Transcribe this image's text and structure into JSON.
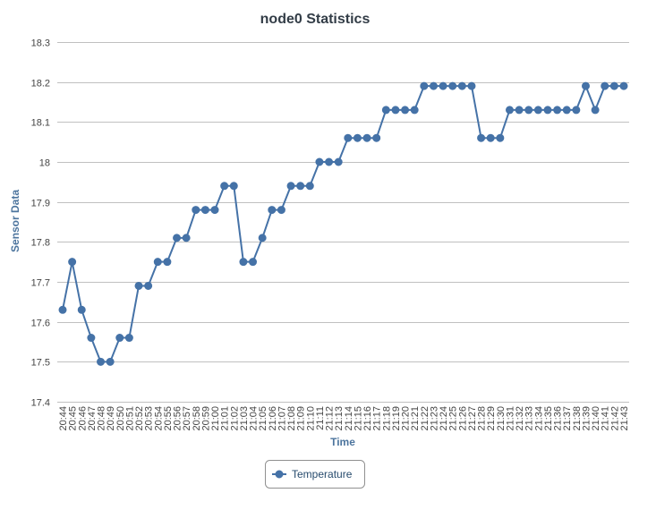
{
  "chart_data": {
    "type": "line",
    "title": "node0 Statistics",
    "xlabel": "Time",
    "ylabel": "Sensor Data",
    "ylim": [
      17.4,
      18.3
    ],
    "yticks": [
      "17.4",
      "17.5",
      "17.6",
      "17.7",
      "17.8",
      "17.9",
      "18",
      "18.1",
      "18.2",
      "18.3"
    ],
    "grid": true,
    "legend_position": "bottom-center",
    "categories": [
      "20:44",
      "20:45",
      "20:46",
      "20:47",
      "20:48",
      "20:49",
      "20:50",
      "20:51",
      "20:52",
      "20:53",
      "20:54",
      "20:55",
      "20:56",
      "20:57",
      "20:58",
      "20:59",
      "21:00",
      "21:01",
      "21:02",
      "21:03",
      "21:04",
      "21:05",
      "21:06",
      "21:07",
      "21:08",
      "21:09",
      "21:10",
      "21:11",
      "21:12",
      "21:13",
      "21:14",
      "21:15",
      "21:16",
      "21:17",
      "21:18",
      "21:19",
      "21:20",
      "21:21",
      "21:22",
      "21:23",
      "21:24",
      "21:25",
      "21:26",
      "21:27",
      "21:28",
      "21:29",
      "21:30",
      "21:31",
      "21:32",
      "21:33",
      "21:34",
      "21:35",
      "21:36",
      "21:37",
      "21:38",
      "21:39",
      "21:40",
      "21:41",
      "21:42",
      "21:43"
    ],
    "series": [
      {
        "name": "Temperature",
        "color": "#4572a7",
        "values": [
          17.63,
          17.75,
          17.63,
          17.56,
          17.5,
          17.5,
          17.56,
          17.56,
          17.69,
          17.69,
          17.75,
          17.75,
          17.81,
          17.81,
          17.88,
          17.88,
          17.88,
          17.94,
          17.94,
          17.75,
          17.75,
          17.81,
          17.88,
          17.88,
          17.94,
          17.94,
          17.94,
          18.0,
          18.0,
          18.0,
          18.06,
          18.06,
          18.06,
          18.06,
          18.13,
          18.13,
          18.13,
          18.13,
          18.19,
          18.19,
          18.19,
          18.19,
          18.19,
          18.19,
          18.06,
          18.06,
          18.06,
          18.13,
          18.13,
          18.13,
          18.13,
          18.13,
          18.13,
          18.13,
          18.13,
          18.19,
          18.13,
          18.19,
          18.19,
          18.19
        ]
      }
    ]
  }
}
